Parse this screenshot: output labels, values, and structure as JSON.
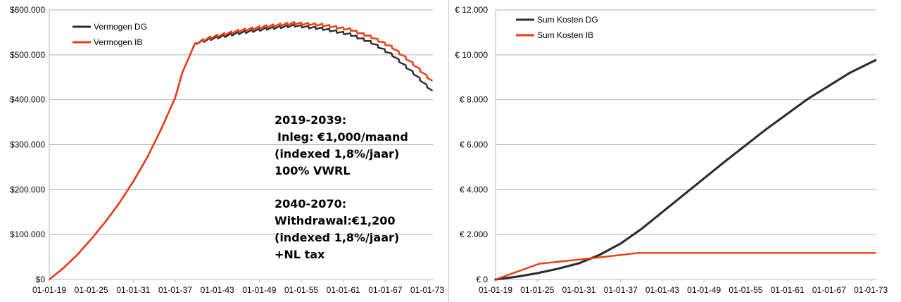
{
  "colors": {
    "dg": "#2b2b2b",
    "ib": "#ee3a0f",
    "grid": "#b3b3b3"
  },
  "chart_data": [
    {
      "type": "line",
      "title": "",
      "xlabel": "",
      "ylabel": "",
      "grid": true,
      "legend_position": "top-left",
      "x_tick_labels": [
        "01-01-19",
        "01-01-25",
        "01-01-31",
        "01-01-37",
        "01-01-43",
        "01-01-49",
        "01-01-55",
        "01-01-61",
        "01-01-67",
        "01-01-73"
      ],
      "y_tick_labels": [
        "$0",
        "$100.000",
        "$200.000",
        "$300.000",
        "$400.000",
        "$500.000",
        "$600.000"
      ],
      "x_range_years": [
        2019,
        2073.8
      ],
      "ylim": [
        0,
        600000
      ],
      "series": [
        {
          "name": "Vermogen DG",
          "color_key": "dg",
          "sawtooth_years": [
            2040,
            2073.8
          ],
          "points": [
            [
              2019,
              0
            ],
            [
              2021,
              25000
            ],
            [
              2023,
              55000
            ],
            [
              2025,
              90000
            ],
            [
              2027,
              128000
            ],
            [
              2029,
              170000
            ],
            [
              2031,
              218000
            ],
            [
              2033,
              272000
            ],
            [
              2035,
              335000
            ],
            [
              2037,
              405000
            ],
            [
              2038,
              460000
            ],
            [
              2039.8,
              525000
            ],
            [
              2042,
              535000
            ],
            [
              2046,
              548000
            ],
            [
              2050,
              558000
            ],
            [
              2054,
              565000
            ],
            [
              2058,
              558000
            ],
            [
              2062,
              545000
            ],
            [
              2065,
              528000
            ],
            [
              2068,
              500000
            ],
            [
              2071,
              460000
            ],
            [
              2073.8,
              418000
            ]
          ]
        },
        {
          "name": "Vermogen IB",
          "color_key": "ib",
          "sawtooth_years": [
            2040,
            2073.8
          ],
          "points": [
            [
              2019,
              0
            ],
            [
              2021,
              25000
            ],
            [
              2023,
              55000
            ],
            [
              2025,
              90000
            ],
            [
              2027,
              128000
            ],
            [
              2029,
              170000
            ],
            [
              2031,
              218000
            ],
            [
              2033,
              272000
            ],
            [
              2035,
              335000
            ],
            [
              2037,
              405000
            ],
            [
              2038,
              460000
            ],
            [
              2039.8,
              525000
            ],
            [
              2042,
              538000
            ],
            [
              2046,
              553000
            ],
            [
              2050,
              563000
            ],
            [
              2054,
              570000
            ],
            [
              2058,
              566000
            ],
            [
              2062,
              556000
            ],
            [
              2065,
              540000
            ],
            [
              2068,
              517000
            ],
            [
              2071,
              480000
            ],
            [
              2073.8,
              440000
            ]
          ]
        }
      ],
      "annotations": {
        "block1": [
          "2019-2039:",
          "Inleg: €1,000/maand",
          "(indexed 1,8%/jaar)",
          "100% VWRL"
        ],
        "block2": [
          "2040-2070:",
          "Withdrawal:€1,200",
          "(indexed 1,8%/jaar)",
          "+NL tax"
        ]
      }
    },
    {
      "type": "line",
      "title": "",
      "xlabel": "",
      "ylabel": "",
      "grid": true,
      "legend_position": "top-left",
      "x_tick_labels": [
        "01-01-19",
        "01-01-25",
        "01-01-31",
        "01-01-37",
        "01-01-43",
        "01-01-49",
        "01-01-55",
        "01-01-61",
        "01-01-67",
        "01-01-73"
      ],
      "y_tick_labels": [
        "€ 0",
        "€ 2.000",
        "€ 4.000",
        "€ 6.000",
        "€ 8.000",
        "€ 10.000",
        "€ 12.000"
      ],
      "x_range_years": [
        2019,
        2073.8
      ],
      "ylim": [
        0,
        12000
      ],
      "series": [
        {
          "name": "Sum Kosten DG",
          "color_key": "dg",
          "markers": true,
          "points": [
            [
              2019,
              0
            ],
            [
              2022,
              120
            ],
            [
              2025,
              280
            ],
            [
              2028,
              480
            ],
            [
              2031,
              720
            ],
            [
              2034,
              1100
            ],
            [
              2037,
              1600
            ],
            [
              2040,
              2250
            ],
            [
              2046,
              3750
            ],
            [
              2052,
              5250
            ],
            [
              2058,
              6700
            ],
            [
              2064,
              8050
            ],
            [
              2070,
              9200
            ],
            [
              2073.8,
              9780
            ]
          ]
        },
        {
          "name": "Sum Kosten IB",
          "color_key": "ib",
          "points": [
            [
              2019,
              0
            ],
            [
              2025.3,
              700
            ],
            [
              2033,
              950
            ],
            [
              2039.5,
              1180
            ],
            [
              2073.8,
              1180
            ]
          ]
        }
      ]
    }
  ]
}
